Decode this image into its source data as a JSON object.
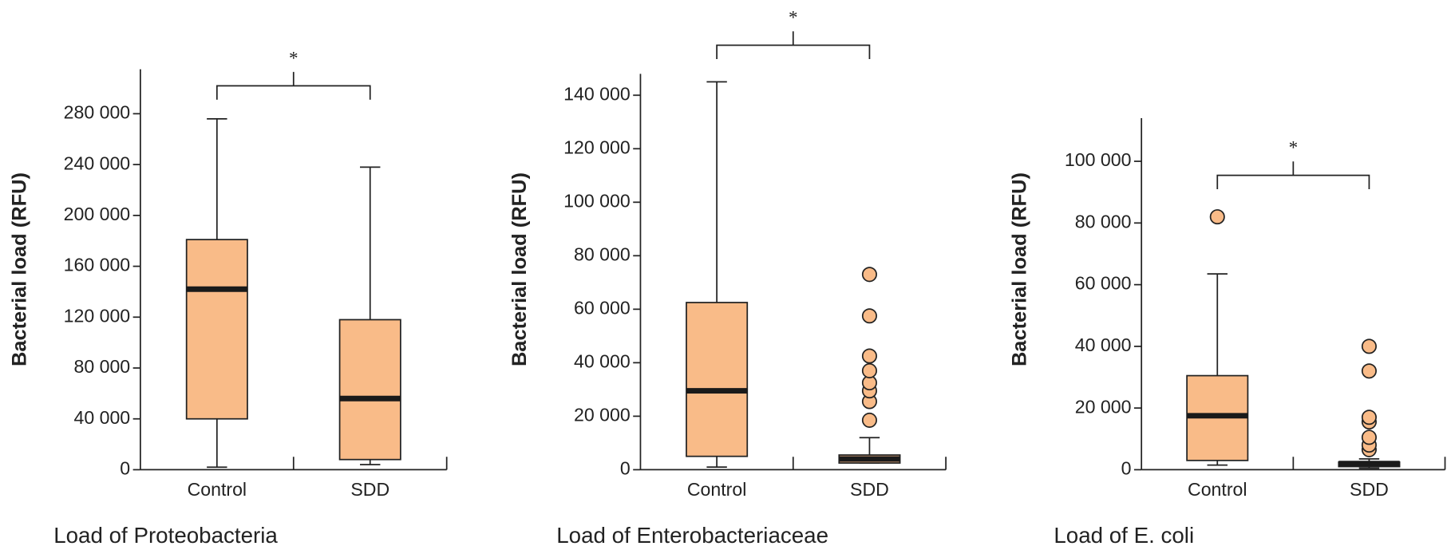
{
  "chart_data": [
    {
      "type": "box",
      "title": "Load of Proteobacteria",
      "ylabel": "Bacterial load (RFU)",
      "annotation": "*",
      "color": "#f9bb88",
      "categories": [
        "Control",
        "SDD"
      ],
      "boxes": [
        {
          "min": 2000,
          "q1": 40000,
          "median": 142000,
          "q3": 181000,
          "max": 276000,
          "outliers": []
        },
        {
          "min": 4000,
          "q1": 8000,
          "median": 56000,
          "q3": 118000,
          "max": 238000,
          "outliers": []
        }
      ],
      "ylim": [
        0,
        315000
      ],
      "yticks": [
        0,
        {
          "value": 40000,
          "label": "40 000"
        },
        {
          "value": 80000,
          "label": "80 000"
        },
        {
          "value": 120000,
          "label": "120 000"
        },
        {
          "value": 160000,
          "label": "160 000"
        },
        {
          "value": 200000,
          "label": "200 000"
        },
        {
          "value": 240000,
          "label": "240 000"
        },
        {
          "value": 280000,
          "label": "280 000"
        }
      ]
    },
    {
      "type": "box",
      "title": "Load of Enterobacteriaceae",
      "ylabel": "Bacterial load (RFU)",
      "annotation": "*",
      "color": "#f9bb88",
      "categories": [
        "Control",
        "SDD"
      ],
      "boxes": [
        {
          "min": 1000,
          "q1": 5000,
          "median": 29500,
          "q3": 62500,
          "max": 145000,
          "outliers": []
        },
        {
          "min": 2500,
          "q1": 2500,
          "median": 4000,
          "q3": 5500,
          "max": 12000,
          "outliers": [
            18500,
            25500,
            29500,
            32500,
            37000,
            42500,
            57500,
            73000
          ]
        }
      ],
      "ylim": [
        0,
        148000
      ],
      "yticks": [
        0,
        {
          "value": 20000,
          "label": "20 000"
        },
        {
          "value": 40000,
          "label": "40 000"
        },
        {
          "value": 60000,
          "label": "60 000"
        },
        {
          "value": 80000,
          "label": "80 000"
        },
        {
          "value": 100000,
          "label": "100 000"
        },
        {
          "value": 120000,
          "label": "120 000"
        },
        {
          "value": 140000,
          "label": "140 000"
        }
      ]
    },
    {
      "type": "box",
      "title": "Load of E. coli",
      "ylabel": "Bacterial load (RFU)",
      "annotation": "*",
      "color": "#f9bb88",
      "categories": [
        "Control",
        "SDD"
      ],
      "boxes": [
        {
          "min": 1500,
          "q1": 3000,
          "median": 17500,
          "q3": 30500,
          "max": 63500,
          "outliers": [
            82000
          ]
        },
        {
          "min": 500,
          "q1": 1000,
          "median": 2000,
          "q3": 2500,
          "max": 3500,
          "outliers": [
            6500,
            8000,
            10500,
            15500,
            17000,
            32000,
            40000
          ]
        }
      ],
      "ylim": [
        0,
        114000
      ],
      "yticks": [
        0,
        {
          "value": 20000,
          "label": "20 000"
        },
        {
          "value": 40000,
          "label": "40 000"
        },
        {
          "value": 60000,
          "label": "60 000"
        },
        {
          "value": 80000,
          "label": "80 000"
        },
        {
          "value": 100000,
          "label": "100 000"
        }
      ]
    }
  ]
}
